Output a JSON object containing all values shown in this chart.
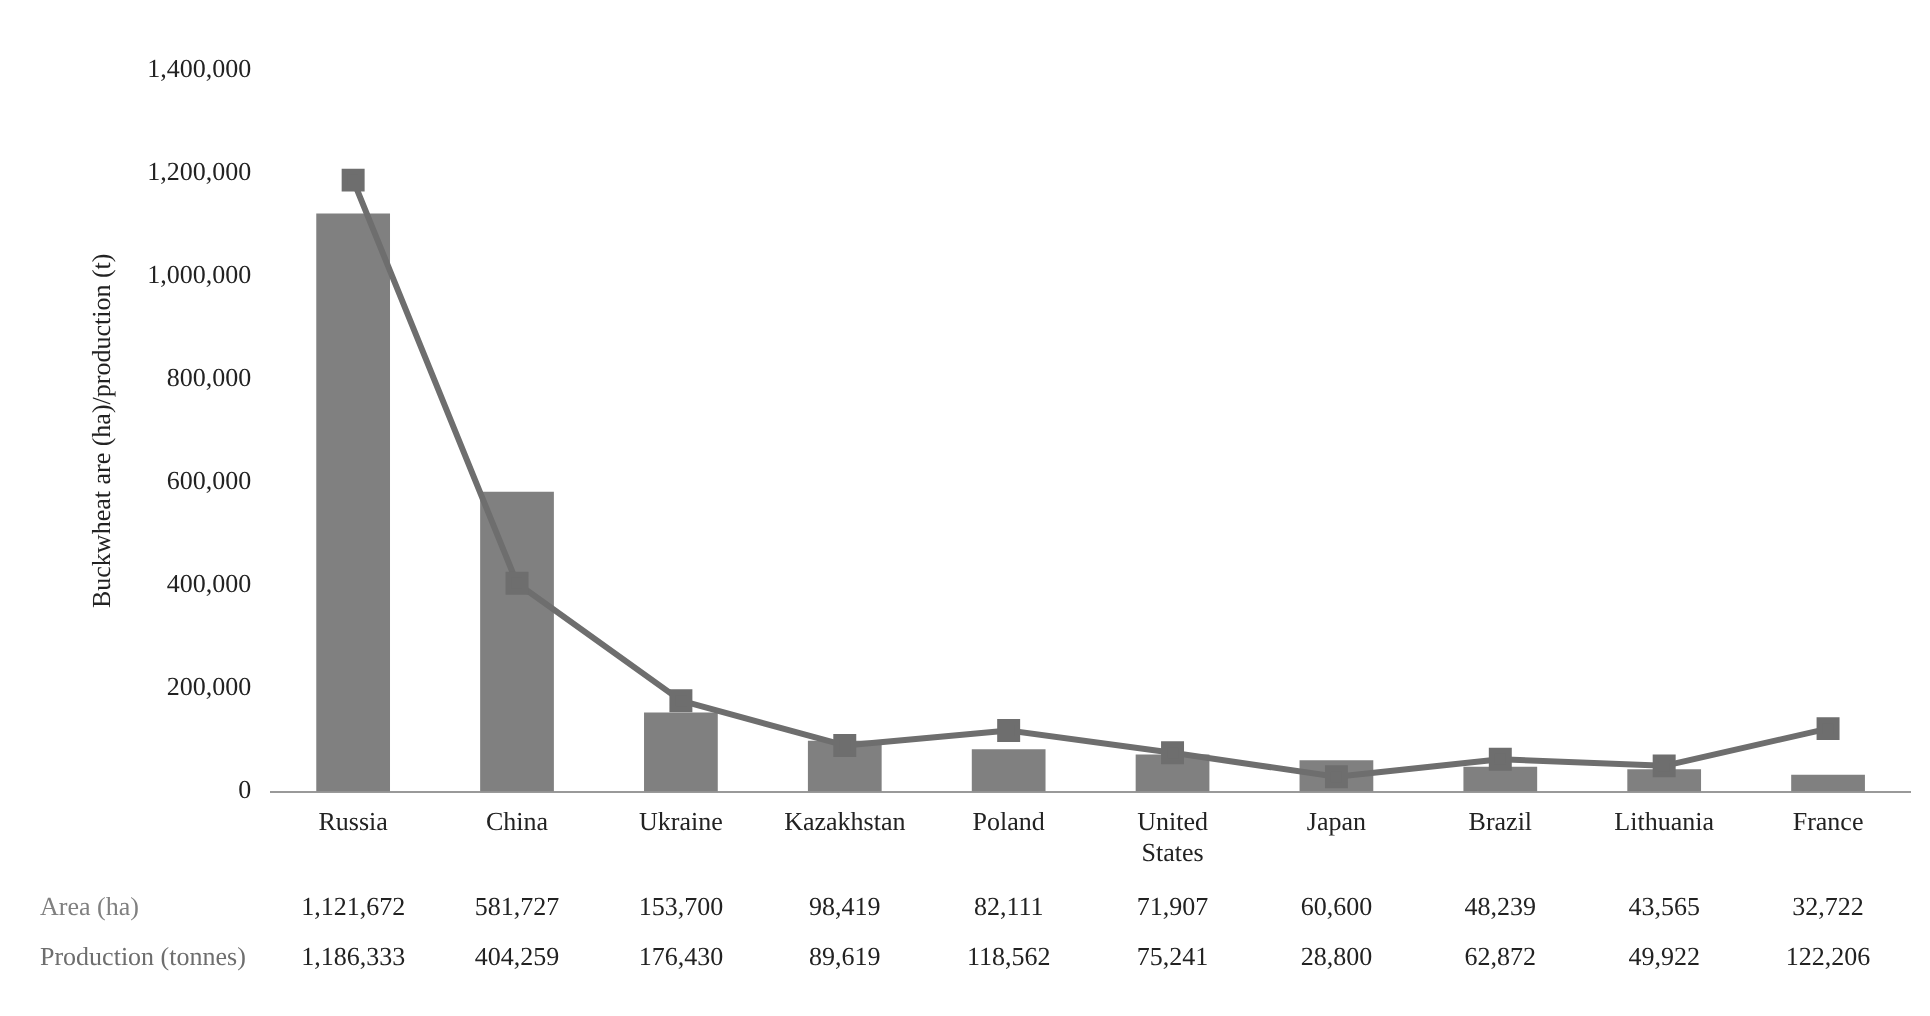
{
  "chart_data": {
    "type": "bar",
    "ylabel": "Buckwheat are (ha)/production (t)",
    "categories": [
      "Russia",
      "China",
      "Ukraine",
      "Kazakhstan",
      "Poland",
      "United States",
      "Japan",
      "Brazil",
      "Lithuania",
      "France"
    ],
    "series": [
      {
        "name": "Area (ha)",
        "color": "#808080",
        "values": [
          1121672,
          581727,
          153700,
          98419,
          82111,
          71907,
          60600,
          48239,
          43565,
          32722
        ],
        "value_labels": [
          "1,121,672",
          "581,727",
          "153,700",
          "98,419",
          "82,111",
          "71,907",
          "60,600",
          "48,239",
          "43,565",
          "32,722"
        ]
      },
      {
        "name": "Production (tonnes)",
        "type": "line",
        "color": "#6e6e6e",
        "values": [
          1186333,
          404259,
          176430,
          89619,
          118562,
          75241,
          28800,
          62872,
          49922,
          122206
        ],
        "value_labels": [
          "1,186,333",
          "404,259",
          "176,430",
          "89,619",
          "118,562",
          "75,241",
          "28,800",
          "62,872",
          "49,922",
          "122,206"
        ]
      }
    ],
    "ylim": [
      0,
      1400000
    ],
    "yticks": [
      0,
      {
        "value": 200000,
        "label": "200,000"
      },
      {
        "value": 400000,
        "label": "400,000"
      },
      {
        "value": 600000,
        "label": "600,000"
      },
      {
        "value": 800000,
        "label": "800,000"
      },
      {
        "value": 1000000,
        "label": "1,000,000"
      },
      {
        "value": 1200000,
        "label": "1,200,000"
      },
      {
        "value": 1400000,
        "label": "1,400,000"
      }
    ],
    "grid": false,
    "legend": false,
    "marker": "square"
  }
}
